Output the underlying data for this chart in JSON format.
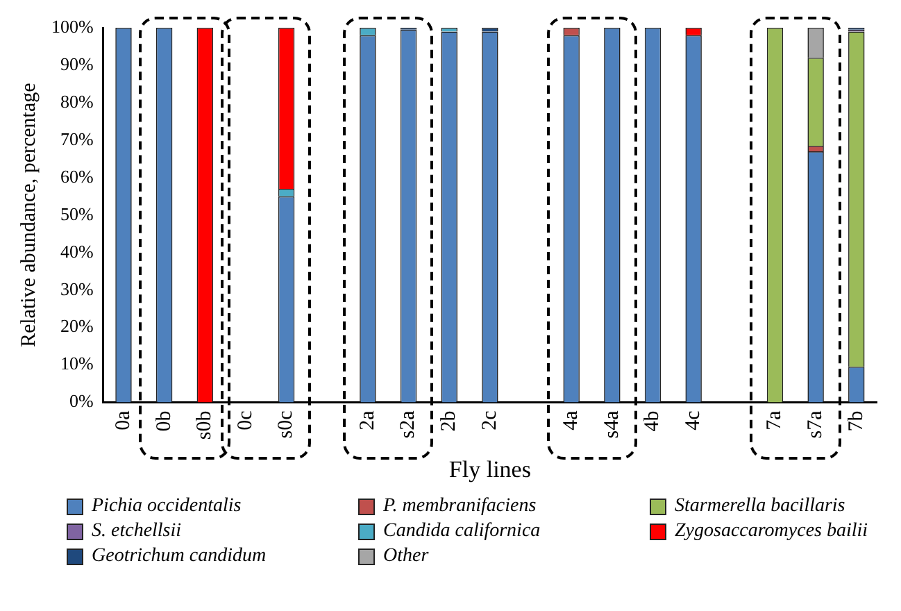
{
  "chart_data": {
    "type": "bar",
    "stacked": true,
    "xlabel": "Fly lines",
    "ylabel": "Relative abundance, percentage",
    "categories": [
      "0a",
      "0b",
      "s0b",
      "0c",
      "s0c",
      null,
      "2a",
      "s2a",
      "2b",
      "2c",
      null,
      "4a",
      "s4a",
      "4b",
      "4c",
      null,
      "7a",
      "s7a",
      "7b"
    ],
    "series": [
      {
        "name": "Pichia occidentalis",
        "color": "#4f81bd",
        "values": [
          100,
          100,
          0,
          0,
          55,
          null,
          98,
          99.5,
          99,
          99,
          null,
          98,
          100,
          100,
          98,
          null,
          0,
          67,
          9.5
        ]
      },
      {
        "name": "P. membranifaciens",
        "color": "#c0504d",
        "values": [
          0,
          0,
          0,
          0,
          0,
          null,
          0,
          0,
          0,
          0,
          null,
          2,
          0,
          0,
          0,
          null,
          0,
          1.5,
          0
        ]
      },
      {
        "name": "Starmerella bacillaris",
        "color": "#9bbb59",
        "values": [
          0,
          0,
          0,
          0,
          0,
          null,
          0,
          0,
          0,
          0,
          null,
          0,
          0,
          0,
          0,
          null,
          100,
          23.5,
          89.5
        ]
      },
      {
        "name": "S. etchellsii",
        "color": "#8064a2",
        "values": [
          0,
          0,
          0,
          0,
          0,
          null,
          0,
          0,
          0,
          0,
          null,
          0,
          0,
          0,
          0,
          null,
          0,
          0,
          0.5
        ]
      },
      {
        "name": "Candida californica",
        "color": "#4bacc6",
        "values": [
          0,
          0,
          0,
          0,
          2,
          null,
          2,
          0,
          1,
          0,
          null,
          0,
          0,
          0,
          0,
          null,
          0,
          0,
          0
        ]
      },
      {
        "name": "Zygosaccaromyces bailii",
        "color": "#ff0000",
        "values": [
          0,
          0,
          100,
          0,
          43,
          null,
          0,
          0,
          0,
          0,
          null,
          0,
          0,
          0,
          2,
          null,
          0,
          0,
          0
        ]
      },
      {
        "name": "Geotrichum candidum",
        "color": "#1f497d",
        "values": [
          0,
          0,
          0,
          0,
          0,
          null,
          0,
          0.5,
          0,
          1,
          null,
          0,
          0,
          0,
          0,
          null,
          0,
          0,
          0.5
        ]
      },
      {
        "name": "Other",
        "color": "#a6a6a6",
        "values": [
          0,
          0,
          0,
          0,
          0,
          null,
          0,
          0,
          0,
          0,
          null,
          0,
          0,
          0,
          0,
          null,
          0,
          8,
          0
        ]
      }
    ],
    "ylim": [
      0,
      100
    ],
    "yticks": [
      {
        "value": 0,
        "label": "0%"
      },
      {
        "value": 10,
        "label": "10%"
      },
      {
        "value": 20,
        "label": "20%"
      },
      {
        "value": 30,
        "label": "30%"
      },
      {
        "value": 40,
        "label": "40%"
      },
      {
        "value": 50,
        "label": "50%"
      },
      {
        "value": 60,
        "label": "60%"
      },
      {
        "value": 70,
        "label": "70%"
      },
      {
        "value": 80,
        "label": "80%"
      },
      {
        "value": 90,
        "label": "90%"
      },
      {
        "value": 100,
        "label": "100%"
      }
    ],
    "grid": false,
    "legend": "bottom"
  }
}
